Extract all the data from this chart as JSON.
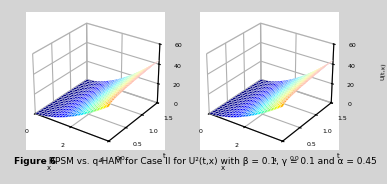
{
  "caption_bold": "Figure 6",
  "caption_rest": "  RPSM vs. q-HAM for Case II for U²(t,x) with β = 0.1, γ = 0.1 and α = 0.45",
  "alpha": 0.45,
  "beta": 0.1,
  "gamma": 0.1,
  "x_range": [
    0,
    4
  ],
  "t_range": [
    0,
    1.5
  ],
  "zlim": [
    0,
    60
  ],
  "zticks": [
    0,
    20,
    40,
    60
  ],
  "xticks": [
    0,
    2,
    4
  ],
  "yticks": [
    0.0,
    0.5,
    1.0,
    1.5
  ],
  "n_points": 25,
  "elev": 28,
  "azim": -55,
  "scale": 3.2,
  "power": 1.7,
  "t_factor": 0.25,
  "bg_color": "#d4d4d4",
  "panel_color": "#ffffff",
  "caption_fontsize": 6.5
}
